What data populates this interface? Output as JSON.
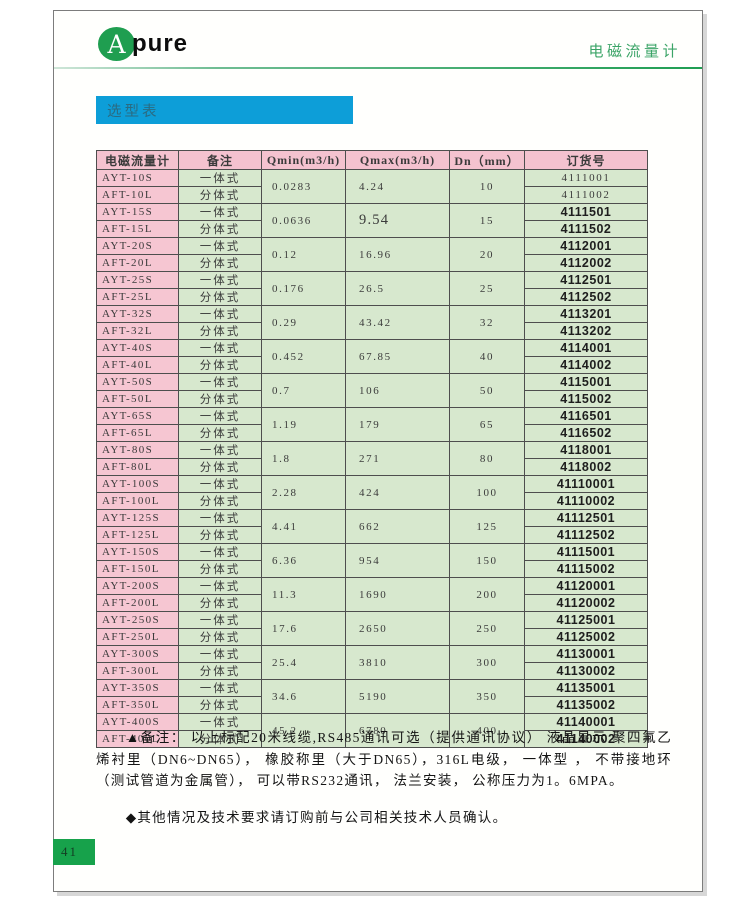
{
  "brand": {
    "logo_a": "A",
    "logo_rest": "pure"
  },
  "header": {
    "product_title": "电磁流量计"
  },
  "banner": {
    "title": "选型表"
  },
  "table": {
    "headers": [
      "电磁流量计",
      "备注",
      "Qmin(m3/h)",
      "Qmax(m3/h)",
      "Dn（mm）",
      "订货号"
    ],
    "pairs": [
      {
        "model_s": "AYT-10S",
        "type_s": "一体式",
        "model_l": "AFT-10L",
        "type_l": "分体式",
        "qmin": "0.0283",
        "qmax": "4.24",
        "dn": "10",
        "order_s": "4111001",
        "order_l": "4111002",
        "bold_orders": false
      },
      {
        "model_s": "AYT-15S",
        "type_s": "一体式",
        "model_l": "AFT-15L",
        "type_l": "分体式",
        "qmin": "0.0636",
        "qmax": "9.54",
        "dn": "15",
        "order_s": "4111501",
        "order_l": "4111502",
        "bold_orders": true,
        "qmax_big": true
      },
      {
        "model_s": "AYT-20S",
        "type_s": "一体式",
        "model_l": "AFT-20L",
        "type_l": "分体式",
        "qmin": "0.12",
        "qmax": "16.96",
        "dn": "20",
        "order_s": "4112001",
        "order_l": "4112002",
        "bold_orders": true
      },
      {
        "model_s": "AYT-25S",
        "type_s": "一体式",
        "model_l": "AFT-25L",
        "type_l": "分体式",
        "qmin": "0.176",
        "qmax": "26.5",
        "dn": "25",
        "order_s": "4112501",
        "order_l": "4112502",
        "bold_orders": true
      },
      {
        "model_s": "AYT-32S",
        "type_s": "一体式",
        "model_l": "AFT-32L",
        "type_l": "分体式",
        "qmin": "0.29",
        "qmax": "43.42",
        "dn": "32",
        "order_s": "4113201",
        "order_l": "4113202",
        "bold_orders": true
      },
      {
        "model_s": "AYT-40S",
        "type_s": "一体式",
        "model_l": "AFT-40L",
        "type_l": "分体式",
        "qmin": "0.452",
        "qmax": "67.85",
        "dn": "40",
        "order_s": "4114001",
        "order_l": "4114002",
        "bold_orders": true
      },
      {
        "model_s": "AYT-50S",
        "type_s": "一体式",
        "model_l": "AFT-50L",
        "type_l": "分体式",
        "qmin": "0.7",
        "qmax": "106",
        "dn": "50",
        "order_s": "4115001",
        "order_l": "4115002",
        "bold_orders": true
      },
      {
        "model_s": "AYT-65S",
        "type_s": "一体式",
        "model_l": "AFT-65L",
        "type_l": "分体式",
        "qmin": "1.19",
        "qmax": "179",
        "dn": "65",
        "order_s": "4116501",
        "order_l": "4116502",
        "bold_orders": true
      },
      {
        "model_s": "AYT-80S",
        "type_s": "一体式",
        "model_l": "AFT-80L",
        "type_l": "分体式",
        "qmin": "1.8",
        "qmax": "271",
        "dn": "80",
        "order_s": "4118001",
        "order_l": "4118002",
        "bold_orders": true
      },
      {
        "model_s": "AYT-100S",
        "type_s": "一体式",
        "model_l": "AFT-100L",
        "type_l": "分体式",
        "qmin": "2.28",
        "qmax": "424",
        "dn": "100",
        "order_s": "41110001",
        "order_l": "41110002",
        "bold_orders": true
      },
      {
        "model_s": "AYT-125S",
        "type_s": "一体式",
        "model_l": "AFT-125L",
        "type_l": "分体式",
        "qmin": "4.41",
        "qmax": "662",
        "dn": "125",
        "order_s": "41112501",
        "order_l": "41112502",
        "bold_orders": true
      },
      {
        "model_s": "AYT-150S",
        "type_s": "一体式",
        "model_l": "AFT-150L",
        "type_l": "分体式",
        "qmin": "6.36",
        "qmax": "954",
        "dn": "150",
        "order_s": "41115001",
        "order_l": "41115002",
        "bold_orders": true
      },
      {
        "model_s": "AYT-200S",
        "type_s": "一体式",
        "model_l": "AFT-200L",
        "type_l": "分体式",
        "qmin": "11.3",
        "qmax": "1690",
        "dn": "200",
        "order_s": "41120001",
        "order_l": "41120002",
        "bold_orders": true
      },
      {
        "model_s": "AYT-250S",
        "type_s": "一体式",
        "model_l": "AFT-250L",
        "type_l": "分体式",
        "qmin": "17.6",
        "qmax": "2650",
        "dn": "250",
        "order_s": "41125001",
        "order_l": "41125002",
        "bold_orders": true
      },
      {
        "model_s": "AYT-300S",
        "type_s": "一体式",
        "model_l": "AFT-300L",
        "type_l": "分体式",
        "qmin": "25.4",
        "qmax": "3810",
        "dn": "300",
        "order_s": "41130001",
        "order_l": "41130002",
        "bold_orders": true
      },
      {
        "model_s": "AYT-350S",
        "type_s": "一体式",
        "model_l": "AFT-350L",
        "type_l": "分体式",
        "qmin": "34.6",
        "qmax": "5190",
        "dn": "350",
        "order_s": "41135001",
        "order_l": "41135002",
        "bold_orders": true
      },
      {
        "model_s": "AYT-400S",
        "type_s": "一体式",
        "model_l": "AFT-400L",
        "type_l": "分体式",
        "qmin": "45.2",
        "qmax": "6780",
        "dn": "400",
        "order_s": "41140001",
        "order_l": "41140002",
        "bold_orders": true
      }
    ]
  },
  "notes": {
    "note1": "▲备注： 以上标配20米线缆,RS485通讯可选（提供通讯协议） 液晶显示 聚四氟乙烯衬里（DN6~DN65）， 橡胶称里（大于DN65），316L电级， 一体型 ， 不带接地环（测试管道为金属管）， 可以带RS232通讯， 法兰安装， 公称压力为1。6MPA。",
    "note2": "◆其他情况及技术要求请订购前与公司相关技术人员确认。"
  },
  "footer": {
    "page_number": "41"
  },
  "colors": {
    "banner_cyan": "#0d9ed8",
    "row_pink": "#f6c6d2",
    "header_pink": "#f4c2cf",
    "cell_green": "#d7e8ce",
    "brand_green": "#1f9e50",
    "header_text_green": "#3ba467",
    "page_badge_green": "#17a24b",
    "frame_border_gray": "#7c7c7c"
  }
}
